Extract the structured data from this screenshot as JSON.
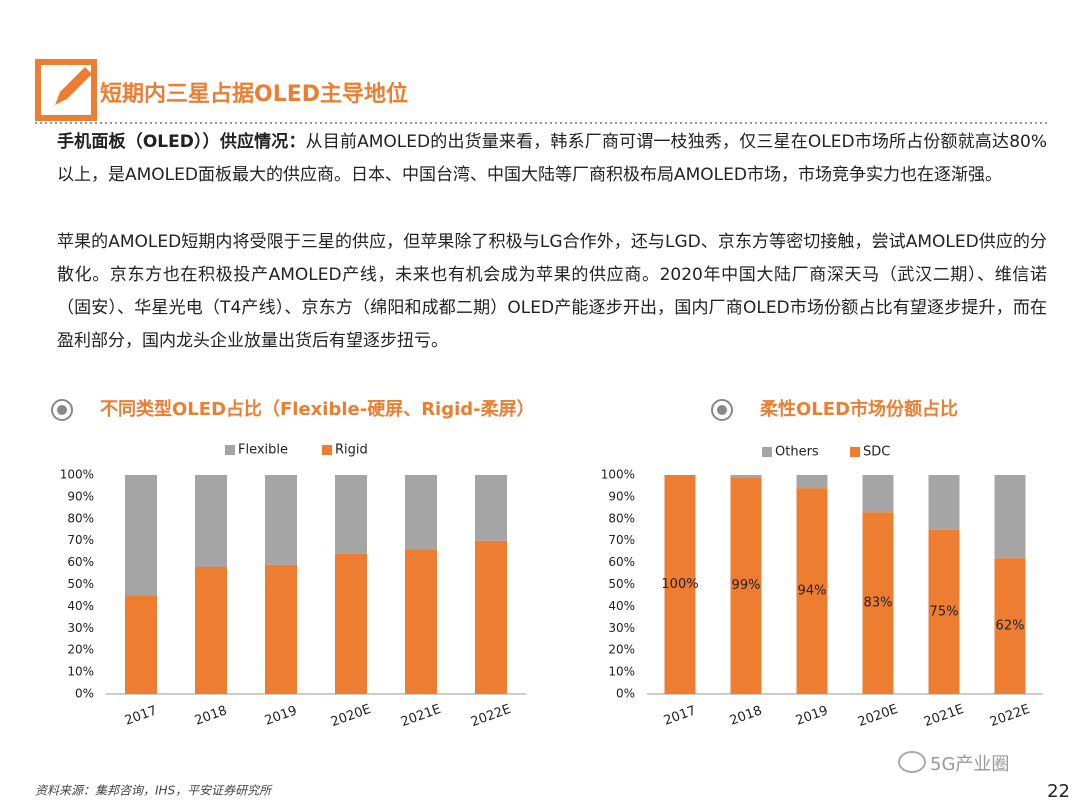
{
  "header": {
    "title": "短期内三星占据OLED主导地位"
  },
  "paragraphs": [
    {
      "lead": "手机面板（OLED））供应情况：",
      "text": "从目前AMOLED的出货量来看，韩系厂商可谓一枝独秀，仅三星在OLED市场所占份额就高达80%以上，是AMOLED面板最大的供应商。日本、中国台湾、中国大陆等厂商积极布局AMOLED市场，市场竞争实力也在逐渐强。"
    },
    {
      "text": "苹果的AMOLED短期内将受限于三星的供应，但苹果除了积极与LG合作外，还与LGD、京东方等密切接触，尝试AMOLED供应的分散化。京东方也在积极投产AMOLED产线，未来也有机会成为苹果的供应商。2020年中国大陆厂商深天马（武汉二期）、维信诺（固安）、华星光电（T4产线）、京东方（绵阳和成都二期）OLED产能逐步开出，国内厂商OLED市场份额占比有望逐步提升，而在盈利部分，国内龙头企业放量出货后有望逐步扭亏。"
    }
  ],
  "chart_data": [
    {
      "type": "bar",
      "stacked": true,
      "title": "不同类型OLED占比（Flexible-硬屏、Rigid-柔屏）",
      "categories": [
        "2017",
        "2018",
        "2019",
        "2020E",
        "2021E",
        "2022E"
      ],
      "series": [
        {
          "name": "Rigid",
          "color": "#ed7d31",
          "values": [
            45,
            58,
            59,
            64,
            66,
            70
          ]
        },
        {
          "name": "Flexible",
          "color": "#a5a5a5",
          "values": [
            55,
            42,
            41,
            36,
            34,
            30
          ]
        }
      ],
      "legend_order": [
        "Flexible",
        "Rigid"
      ],
      "ylim": [
        0,
        100
      ],
      "yticks": [
        {
          "value": 0,
          "label": "0%"
        },
        {
          "value": 10,
          "label": "10%"
        },
        {
          "value": 20,
          "label": "20%"
        },
        {
          "value": 30,
          "label": "30%"
        },
        {
          "value": 40,
          "label": "40%"
        },
        {
          "value": 50,
          "label": "50%"
        },
        {
          "value": 60,
          "label": "60%"
        },
        {
          "value": 70,
          "label": "70%"
        },
        {
          "value": 80,
          "label": "80%"
        },
        {
          "value": 90,
          "label": "90%"
        },
        {
          "value": 100,
          "label": "100%"
        }
      ]
    },
    {
      "type": "bar",
      "stacked": true,
      "title": "柔性OLED市场份额占比",
      "categories": [
        "2017",
        "2018",
        "2019",
        "2020E",
        "2021E",
        "2022E"
      ],
      "series": [
        {
          "name": "SDC",
          "color": "#ed7d31",
          "values": [
            100,
            99,
            94,
            83,
            75,
            62
          ],
          "value_labels": [
            "100%",
            "99%",
            "94%",
            "83%",
            "75%",
            "62%"
          ]
        },
        {
          "name": "Others",
          "color": "#a5a5a5",
          "values": [
            0,
            1,
            6,
            17,
            25,
            38
          ]
        }
      ],
      "legend_order": [
        "Others",
        "SDC"
      ],
      "ylim": [
        0,
        100
      ],
      "yticks": [
        {
          "value": 0,
          "label": "0%"
        },
        {
          "value": 10,
          "label": "10%"
        },
        {
          "value": 20,
          "label": "20%"
        },
        {
          "value": 30,
          "label": "30%"
        },
        {
          "value": 40,
          "label": "40%"
        },
        {
          "value": 50,
          "label": "50%"
        },
        {
          "value": 60,
          "label": "60%"
        },
        {
          "value": 70,
          "label": "70%"
        },
        {
          "value": 80,
          "label": "80%"
        },
        {
          "value": 90,
          "label": "90%"
        },
        {
          "value": 100,
          "label": "100%"
        }
      ]
    }
  ],
  "footer": {
    "source": "资料来源：集邦咨询，IHS，平安证券研究所",
    "watermark": "5G产业圈",
    "page": "22"
  }
}
